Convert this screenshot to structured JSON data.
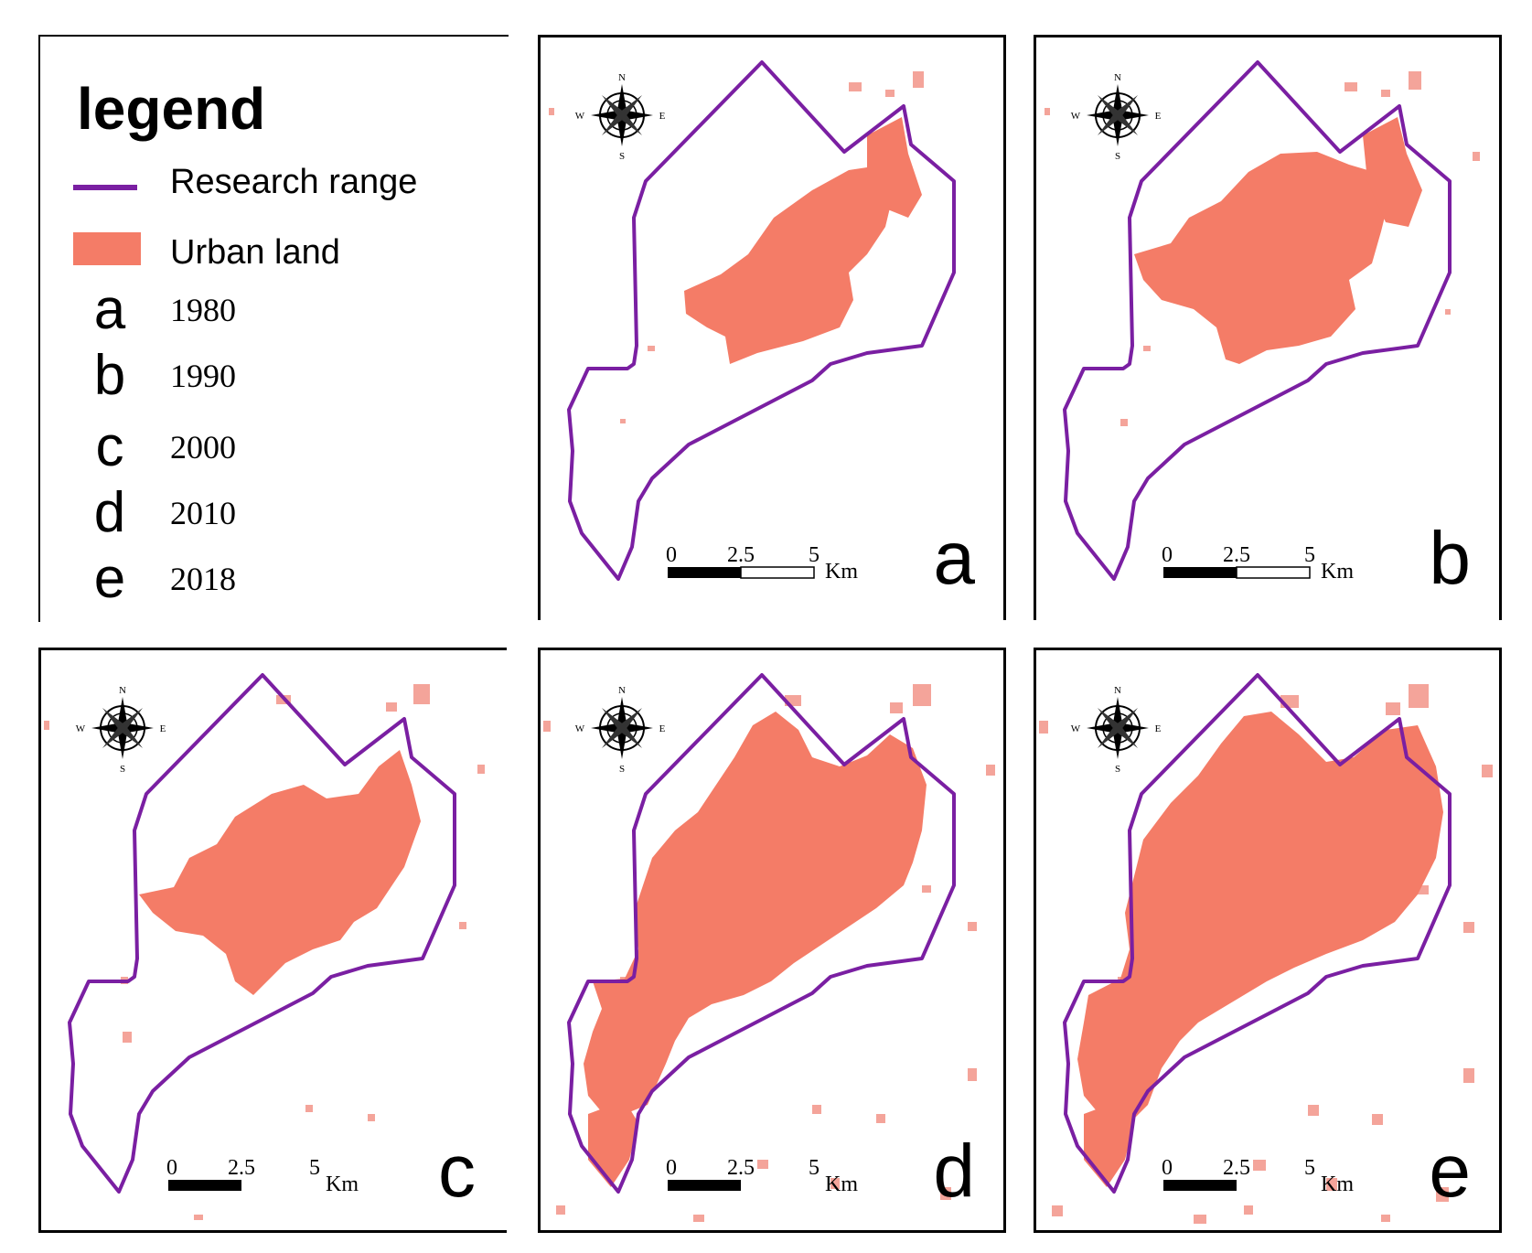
{
  "legend": {
    "title": "legend",
    "research_range_label": "Research range",
    "urban_land_label": "Urban land",
    "years": [
      {
        "letter": "a",
        "year": "1980"
      },
      {
        "letter": "b",
        "year": "1990"
      },
      {
        "letter": "c",
        "year": "2000"
      },
      {
        "letter": "d",
        "year": "2010"
      },
      {
        "letter": "e",
        "year": "2018"
      }
    ]
  },
  "colors": {
    "boundary": "#7a1fa2",
    "urban": "#f47c67",
    "urban_light": "#f4a49a",
    "frame": "#000000"
  },
  "scale_bar": {
    "tick_0": "0",
    "tick_mid": "2.5",
    "tick_end": "5",
    "unit": "Km"
  },
  "compass": {
    "n": "N",
    "s": "S",
    "e": "E",
    "w": "W"
  },
  "panels": [
    {
      "id": "a",
      "letter": "a"
    },
    {
      "id": "b",
      "letter": "b"
    },
    {
      "id": "c",
      "letter": "c"
    },
    {
      "id": "d",
      "letter": "d"
    },
    {
      "id": "e",
      "letter": "e"
    }
  ]
}
